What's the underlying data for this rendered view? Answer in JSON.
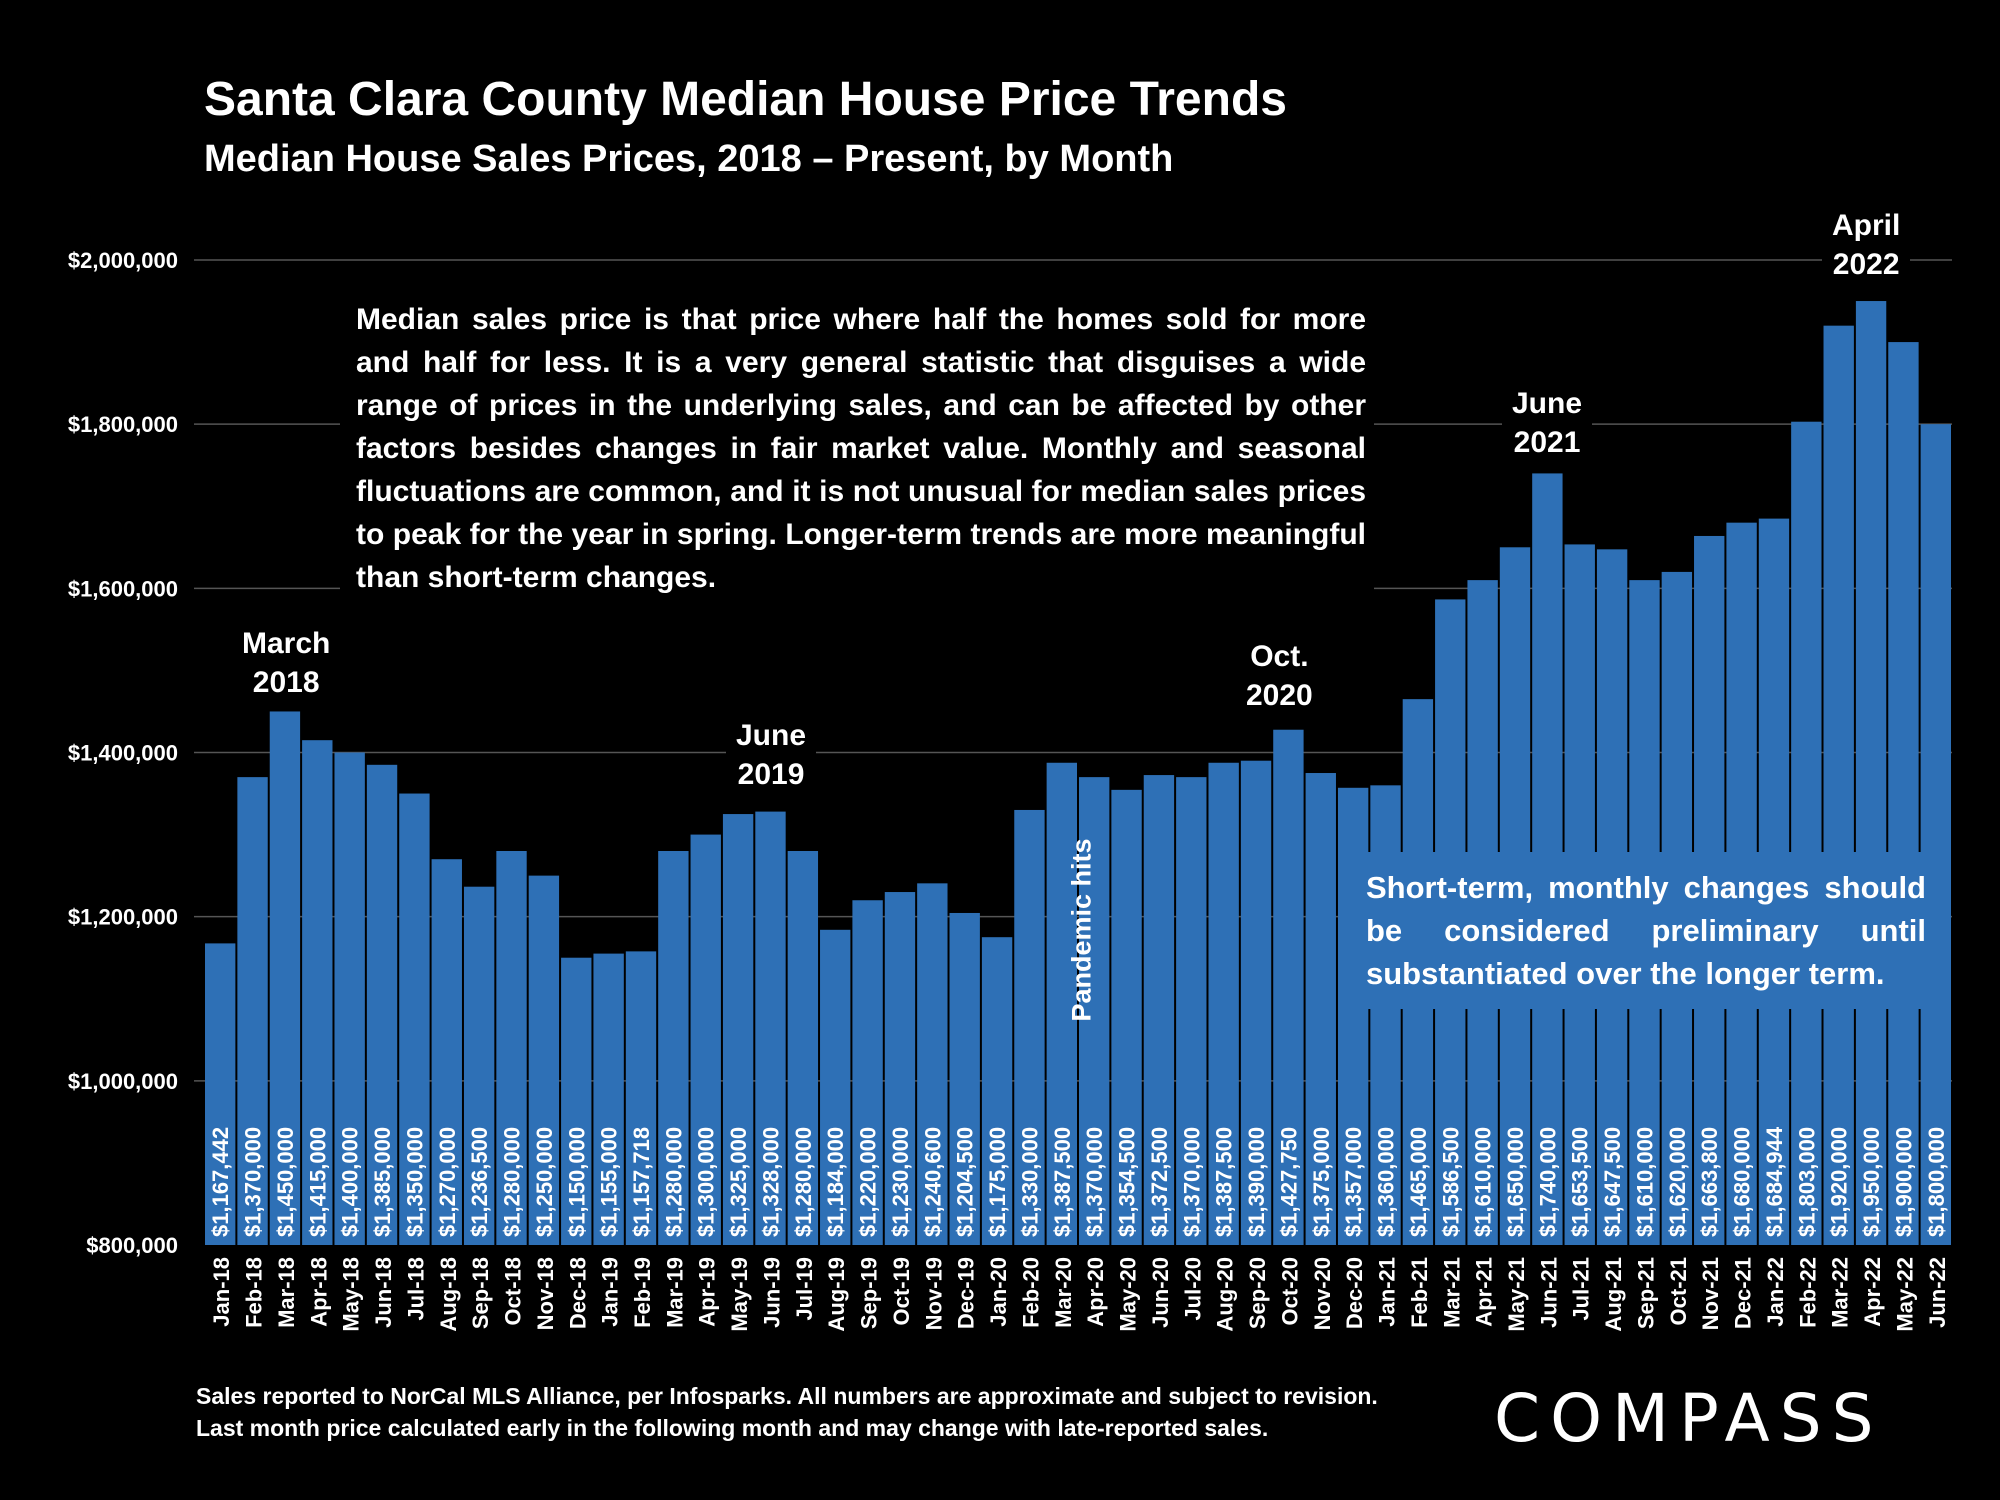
{
  "title": "Santa Clara County Median House Price Trends",
  "subtitle": "Median House Sales Prices, 2018 – Present, by Month",
  "note_top": "Median sales price is that price where half the homes sold for more and half for less. It is a very general statistic that disguises a wide range of prices in the underlying sales, and can be affected by other factors besides changes in fair market value. Monthly and seasonal fluctuations are common, and it is not unusual for median sales prices to peak for the year in spring. Longer-term trends are more meaningful than short-term changes.",
  "note_bottom": "Short-term, monthly changes should be considered preliminary until substantiated over the longer term.",
  "annotations": {
    "mar2018": [
      "March",
      "2018"
    ],
    "jun2019": [
      "June",
      "2019"
    ],
    "oct2020": [
      "Oct.",
      "2020"
    ],
    "jun2021": [
      "June",
      "2021"
    ],
    "apr2022": [
      "April",
      "2022"
    ],
    "pandemic": "Pandemic hits"
  },
  "footer": {
    "line1": "Sales reported to NorCal MLS Alliance, per Infosparks. All numbers are approximate and subject to revision.",
    "line2": "Last month price calculated early in the following month and may change with late-reported sales."
  },
  "logo": "COMPASS",
  "colors": {
    "bar": "#2e70b6",
    "background": "#000000",
    "grid": "#555555",
    "text": "#ffffff"
  },
  "chart_data": {
    "type": "bar",
    "title": "Santa Clara County Median House Price Trends",
    "subtitle": "Median House Sales Prices, 2018 – Present, by Month",
    "xlabel": "",
    "ylabel": "",
    "ylim": [
      800000,
      2000000
    ],
    "yticks": [
      800000,
      1000000,
      1200000,
      1400000,
      1600000,
      1800000,
      2000000
    ],
    "ytick_labels": [
      "$800,000",
      "$1,000,000",
      "$1,200,000",
      "$1,400,000",
      "$1,600,000",
      "$1,800,000",
      "$2,000,000"
    ],
    "grid": true,
    "categories": [
      "Jan-18",
      "Feb-18",
      "Mar-18",
      "Apr-18",
      "May-18",
      "Jun-18",
      "Jul-18",
      "Aug-18",
      "Sep-18",
      "Oct-18",
      "Nov-18",
      "Dec-18",
      "Jan-19",
      "Feb-19",
      "Mar-19",
      "Apr-19",
      "May-19",
      "Jun-19",
      "Jul-19",
      "Aug-19",
      "Sep-19",
      "Oct-19",
      "Nov-19",
      "Dec-19",
      "Jan-20",
      "Feb-20",
      "Mar-20",
      "Apr-20",
      "May-20",
      "Jun-20",
      "Jul-20",
      "Aug-20",
      "Sep-20",
      "Oct-20",
      "Nov-20",
      "Dec-20",
      "Jan-21",
      "Feb-21",
      "Mar-21",
      "Apr-21",
      "May-21",
      "Jun-21",
      "Jul-21",
      "Aug-21",
      "Sep-21",
      "Oct-21",
      "Nov-21",
      "Dec-21",
      "Jan-22",
      "Feb-22",
      "Mar-22",
      "Apr-22",
      "May-22",
      "Jun-22"
    ],
    "values": [
      1167442,
      1370000,
      1450000,
      1415000,
      1400000,
      1385000,
      1350000,
      1270000,
      1236500,
      1280000,
      1250000,
      1150000,
      1155000,
      1157718,
      1280000,
      1300000,
      1325000,
      1328000,
      1280000,
      1184000,
      1220000,
      1230000,
      1240600,
      1204500,
      1175000,
      1330000,
      1387500,
      1370000,
      1354500,
      1372500,
      1370000,
      1387500,
      1390000,
      1427750,
      1375000,
      1357000,
      1360000,
      1465000,
      1586500,
      1610000,
      1650000,
      1740000,
      1653500,
      1647500,
      1610000,
      1620000,
      1663800,
      1680000,
      1684944,
      1803000,
      1920000,
      1950000,
      1900000,
      1800000
    ],
    "value_labels": [
      "$1,167,442",
      "$1,370,000",
      "$1,450,000",
      "$1,415,000",
      "$1,400,000",
      "$1,385,000",
      "$1,350,000",
      "$1,270,000",
      "$1,236,500",
      "$1,280,000",
      "$1,250,000",
      "$1,150,000",
      "$1,155,000",
      "$1,157,718",
      "$1,280,000",
      "$1,300,000",
      "$1,325,000",
      "$1,328,000",
      "$1,280,000",
      "$1,184,000",
      "$1,220,000",
      "$1,230,000",
      "$1,240,600",
      "$1,204,500",
      "$1,175,000",
      "$1,330,000",
      "$1,387,500",
      "$1,370,000",
      "$1,354,500",
      "$1,372,500",
      "$1,370,000",
      "$1,387,500",
      "$1,390,000",
      "$1,427,750",
      "$1,375,000",
      "$1,357,000",
      "$1,360,000",
      "$1,465,000",
      "$1,586,500",
      "$1,610,000",
      "$1,650,000",
      "$1,740,000",
      "$1,653,500",
      "$1,647,500",
      "$1,610,000",
      "$1,620,000",
      "$1,663,800",
      "$1,680,000",
      "$1,684,944",
      "$1,803,000",
      "$1,920,000",
      "$1,950,000",
      "$1,900,000",
      "$1,800,000"
    ]
  }
}
